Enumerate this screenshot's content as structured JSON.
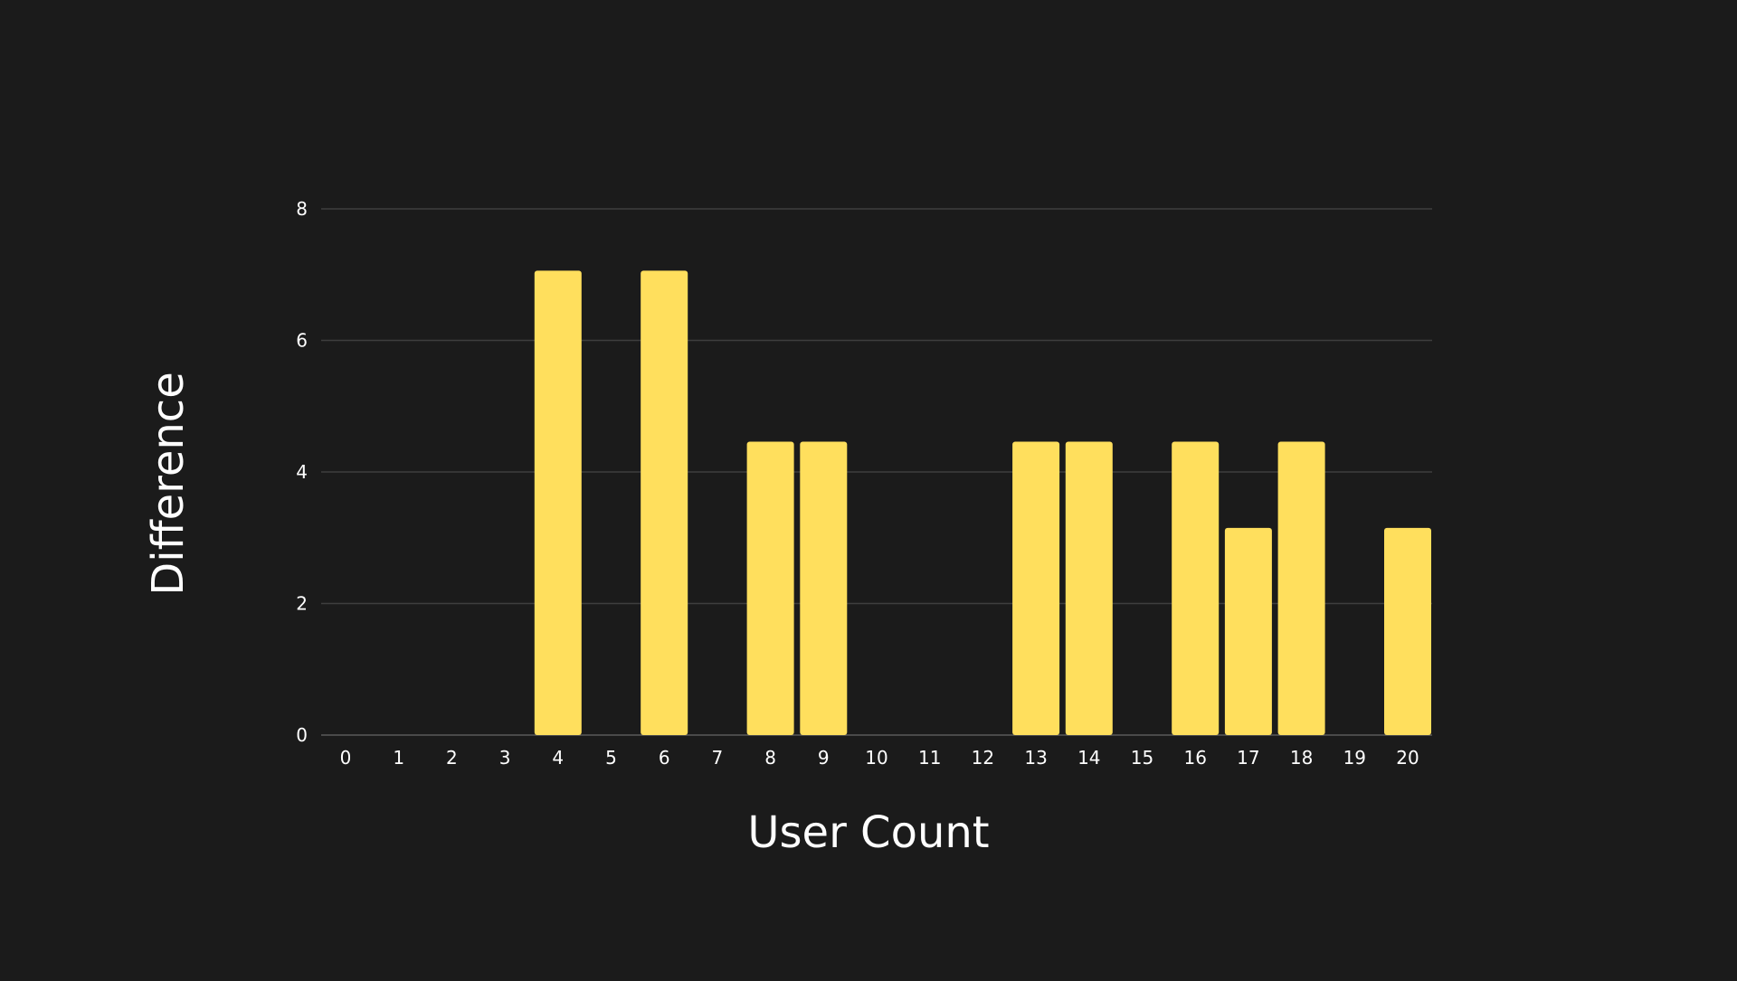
{
  "chart_data": {
    "type": "bar",
    "xlabel": "User Count",
    "ylabel": "Difference",
    "categories": [
      "0",
      "1",
      "2",
      "3",
      "4",
      "5",
      "6",
      "7",
      "8",
      "9",
      "10",
      "11",
      "12",
      "13",
      "14",
      "15",
      "16",
      "17",
      "18",
      "19",
      "20"
    ],
    "values": [
      0,
      0,
      0,
      0,
      7.06,
      0,
      7.06,
      0,
      4.46,
      4.46,
      0,
      0,
      0,
      4.46,
      4.46,
      0,
      4.46,
      3.15,
      4.46,
      0,
      3.15
    ],
    "ylim": [
      0,
      8
    ],
    "yticks": [
      0,
      2,
      4,
      6,
      8
    ],
    "grid": true,
    "legend": "none"
  },
  "colors": {
    "background": "#1b1b1b",
    "bar": "#ffdf5d",
    "grid": "#3e3e3e",
    "baseline": "#5a5a5a",
    "text": "#ffffff"
  }
}
